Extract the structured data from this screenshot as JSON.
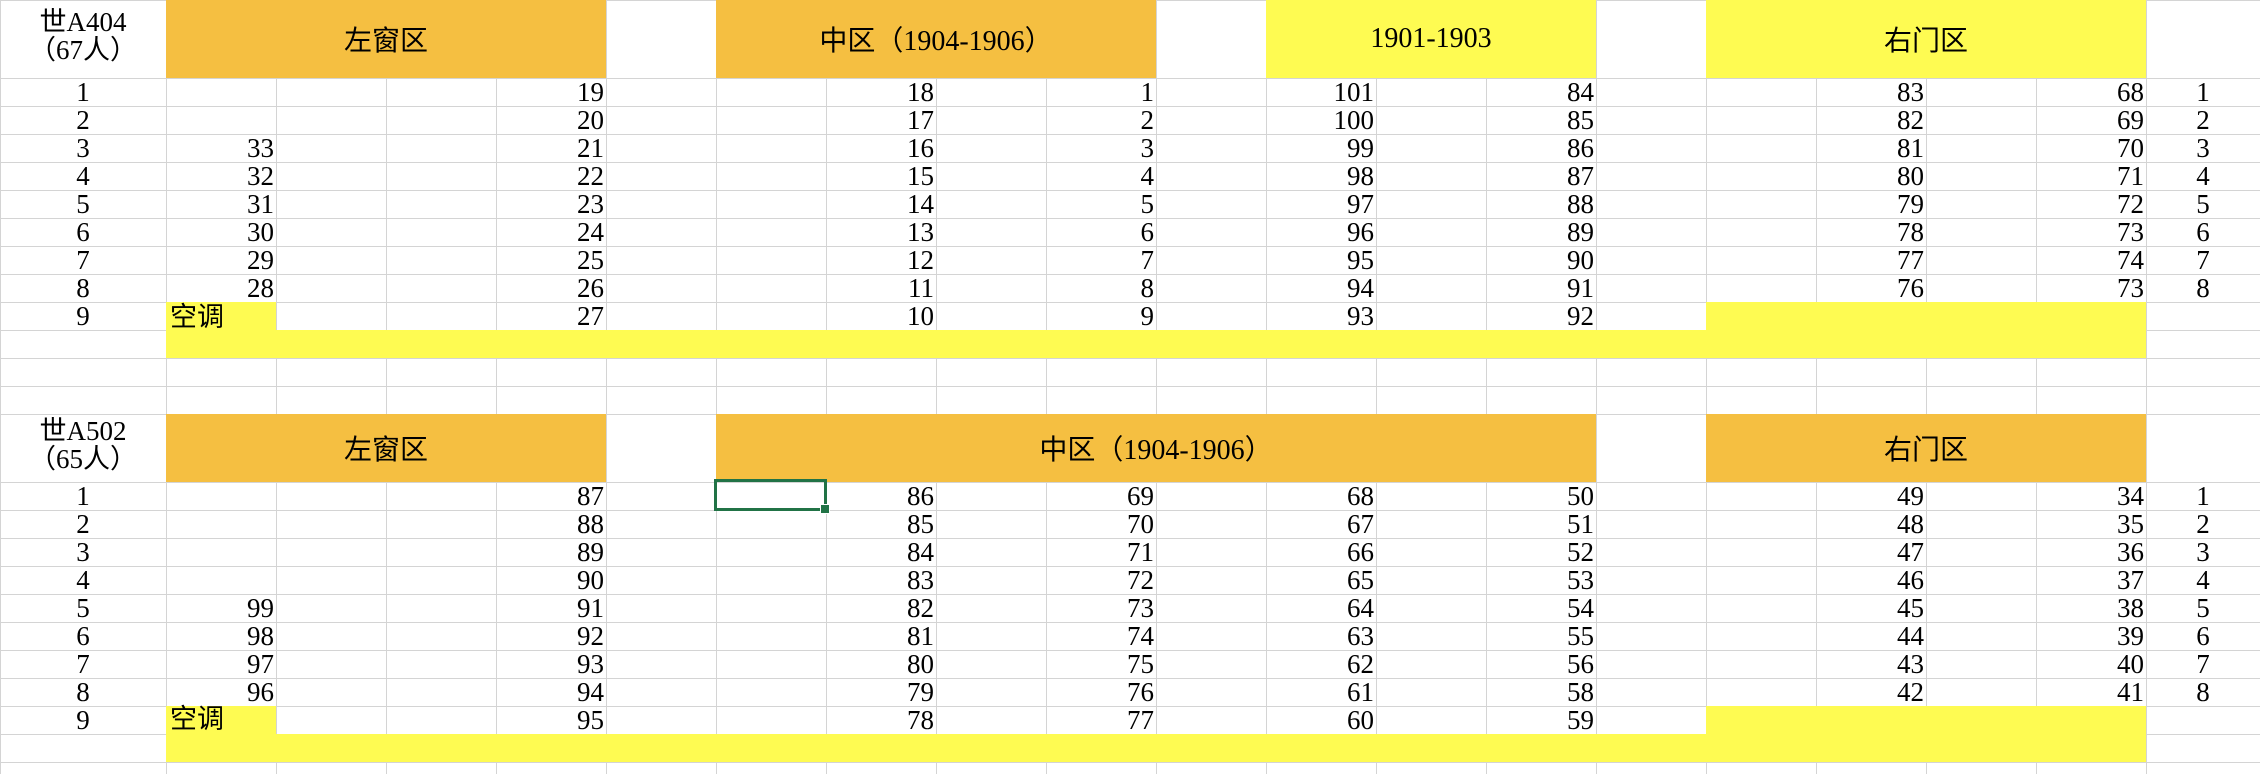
{
  "sections": [
    {
      "room": "世A404",
      "count": "（67人）",
      "headers": {
        "left": "左窗区",
        "middle": "中区（1904-1906）",
        "extra": "1901-1903",
        "right": "右门区"
      },
      "row_numbers": [
        "1",
        "2",
        "3",
        "4",
        "5",
        "6",
        "7",
        "8",
        "9"
      ],
      "left_a": [
        "",
        "",
        "33",
        "32",
        "31",
        "30",
        "29",
        "28",
        ""
      ],
      "left_b": [
        "19",
        "20",
        "21",
        "22",
        "23",
        "24",
        "25",
        "26",
        "27"
      ],
      "mid_a": [
        "18",
        "17",
        "16",
        "15",
        "14",
        "13",
        "12",
        "11",
        "10"
      ],
      "mid_b": [
        "1",
        "2",
        "3",
        "4",
        "5",
        "6",
        "7",
        "8",
        "9"
      ],
      "mid_c": [
        "101",
        "100",
        "99",
        "98",
        "97",
        "96",
        "95",
        "94",
        "93"
      ],
      "mid_d": [
        "84",
        "85",
        "86",
        "87",
        "88",
        "89",
        "90",
        "91",
        "92"
      ],
      "right_a": [
        "83",
        "82",
        "81",
        "80",
        "79",
        "78",
        "77",
        "76",
        ""
      ],
      "right_b": [
        "68",
        "69",
        "70",
        "71",
        "72",
        "73",
        "74",
        "73",
        ""
      ],
      "right_nums": [
        "1",
        "2",
        "3",
        "4",
        "5",
        "6",
        "7",
        "8",
        ""
      ],
      "ac_label": "空调"
    },
    {
      "room": "世A502",
      "count": "（65人）",
      "headers": {
        "left": "左窗区",
        "middle": "中区（1904-1906）",
        "right": "右门区"
      },
      "row_numbers": [
        "1",
        "2",
        "3",
        "4",
        "5",
        "6",
        "7",
        "8",
        "9"
      ],
      "left_a": [
        "",
        "",
        "",
        "",
        "99",
        "98",
        "97",
        "96",
        ""
      ],
      "left_b": [
        "87",
        "88",
        "89",
        "90",
        "91",
        "92",
        "93",
        "94",
        "95"
      ],
      "mid_a": [
        "86",
        "85",
        "84",
        "83",
        "82",
        "81",
        "80",
        "79",
        "78"
      ],
      "mid_b": [
        "69",
        "70",
        "71",
        "72",
        "73",
        "74",
        "75",
        "76",
        "77"
      ],
      "mid_c": [
        "68",
        "67",
        "66",
        "65",
        "64",
        "63",
        "62",
        "61",
        "60"
      ],
      "mid_d": [
        "50",
        "51",
        "52",
        "53",
        "54",
        "55",
        "56",
        "58",
        "59"
      ],
      "right_a": [
        "49",
        "48",
        "47",
        "46",
        "45",
        "44",
        "43",
        "42",
        ""
      ],
      "right_b": [
        "34",
        "35",
        "36",
        "37",
        "38",
        "39",
        "40",
        "41",
        ""
      ],
      "right_nums": [
        "1",
        "2",
        "3",
        "4",
        "5",
        "6",
        "7",
        "8",
        ""
      ],
      "ac_label": "空调"
    }
  ],
  "colors": {
    "orange": "#f5bf41",
    "yellow": "#fefb52",
    "grid": "#d4d4d4",
    "selection": "#217346"
  }
}
